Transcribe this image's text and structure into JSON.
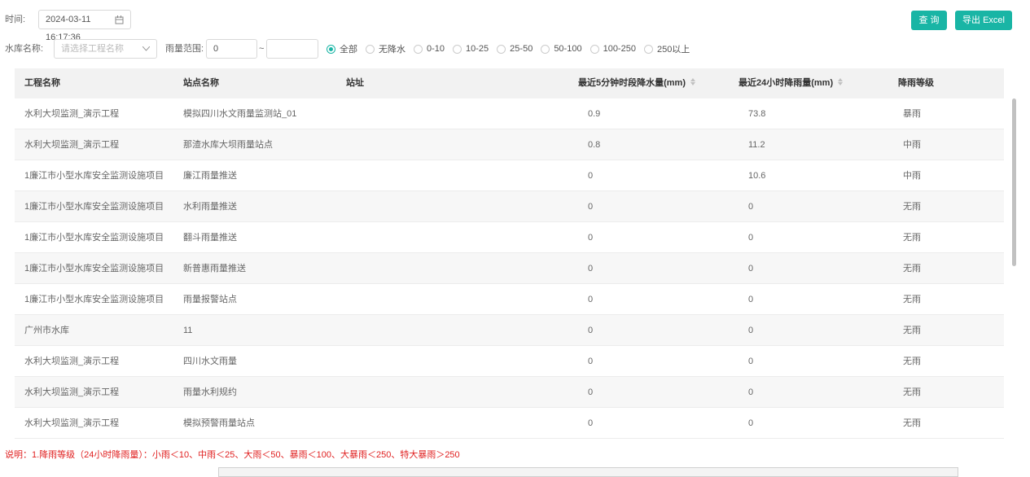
{
  "filters": {
    "time_label": "时间:",
    "time_value": "2024-03-11 16:17:36",
    "reservoir_label": "水库名称:",
    "reservoir_placeholder": "请选择工程名称",
    "range_label": "雨量范围:",
    "range_min": "0",
    "range_separator": "~",
    "radios": [
      "全部",
      "无降水",
      "0-10",
      "10-25",
      "25-50",
      "50-100",
      "100-250",
      "250以上"
    ],
    "selected_radio": 0
  },
  "buttons": {
    "query": "查 询",
    "export": "导出 Excel"
  },
  "table": {
    "columns": [
      "工程名称",
      "站点名称",
      "站址",
      "最近5分钟时段降水量(mm)",
      "最近24小时降雨量(mm)",
      "降雨等级"
    ],
    "sortable": [
      3,
      4
    ],
    "rows": [
      {
        "project": "水利大坝监测_演示工程",
        "station": "模拟四川水文雨量监测站_01",
        "rain_5min": "0.9",
        "rain_24h": "73.8",
        "level": "暴雨"
      },
      {
        "project": "水利大坝监测_演示工程",
        "station": "那渣水库大坝雨量站点",
        "rain_5min": "0.8",
        "rain_24h": "11.2",
        "level": "中雨"
      },
      {
        "project": "1廉江市小型水库安全监测设施项目",
        "station": "廉江雨量推送",
        "rain_5min": "0",
        "rain_24h": "10.6",
        "level": "中雨"
      },
      {
        "project": "1廉江市小型水库安全监测设施项目",
        "station": "水利雨量推送",
        "rain_5min": "0",
        "rain_24h": "0",
        "level": "无雨"
      },
      {
        "project": "1廉江市小型水库安全监测设施项目",
        "station": "翻斗雨量推送",
        "rain_5min": "0",
        "rain_24h": "0",
        "level": "无雨"
      },
      {
        "project": "1廉江市小型水库安全监测设施项目",
        "station": "新普惠雨量推送",
        "rain_5min": "0",
        "rain_24h": "0",
        "level": "无雨"
      },
      {
        "project": "1廉江市小型水库安全监测设施项目",
        "station": "雨量报警站点",
        "rain_5min": "0",
        "rain_24h": "0",
        "level": "无雨"
      },
      {
        "project": "广州市水库",
        "station": "11",
        "rain_5min": "0",
        "rain_24h": "0",
        "level": "无雨"
      },
      {
        "project": "水利大坝监测_演示工程",
        "station": "四川水文雨量",
        "rain_5min": "0",
        "rain_24h": "0",
        "level": "无雨"
      },
      {
        "project": "水利大坝监测_演示工程",
        "station": "雨量水利规约",
        "rain_5min": "0",
        "rain_24h": "0",
        "level": "无雨"
      },
      {
        "project": "水利大坝监测_演示工程",
        "station": "模拟预警雨量站点",
        "rain_5min": "0",
        "rain_24h": "0",
        "level": "无雨"
      }
    ]
  },
  "note": "说明：1.降雨等级（24小时降雨量）：小雨＜10、中雨＜25、大雨＜50、暴雨＜100、大暴雨＜250、特大暴雨＞250"
}
